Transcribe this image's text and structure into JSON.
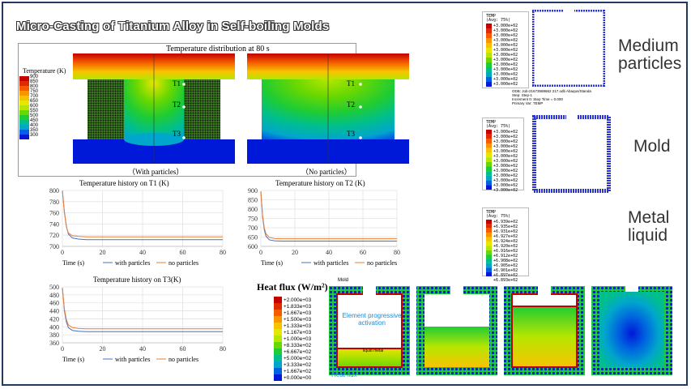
{
  "title": "Micro-Casting of Titanium Alloy in Self-boiling Molds",
  "temperature_panel": {
    "title": "Temperature distribution at 80 s",
    "legend_title": "Temperature (K)",
    "legend_values": [
      "900",
      "850",
      "800",
      "750",
      "700",
      "650",
      "600",
      "550",
      "500",
      "450",
      "400",
      "350",
      "300"
    ],
    "legend_colors": [
      "#c40000",
      "#e12a00",
      "#f55c00",
      "#fb9300",
      "#f7c300",
      "#e7e600",
      "#b6e600",
      "#6ad800",
      "#1fcc33",
      "#00bf8c",
      "#00a6cc",
      "#0062e0",
      "#0018d8"
    ],
    "probe_labels": [
      "T1",
      "T2",
      "T3"
    ],
    "left_caption": "（With particles）",
    "right_caption": "（No particles）"
  },
  "chart_data": [
    {
      "type": "line",
      "title": "Temperature history on T1 (K)",
      "xlabel": "Time (s)",
      "xlim": [
        0,
        80
      ],
      "ylim": [
        700,
        800
      ],
      "yticks": [
        700,
        720,
        740,
        760,
        780,
        800
      ],
      "xticks": [
        0,
        20,
        40,
        60,
        80
      ],
      "grid": true,
      "legend_position": "bottom",
      "series": [
        {
          "name": "with particles",
          "color": "#4472c4",
          "x": [
            0,
            1,
            2,
            3,
            5,
            8,
            12,
            20,
            40,
            60,
            80
          ],
          "y": [
            800,
            762,
            736,
            722,
            715,
            713,
            712,
            712,
            712,
            712,
            712
          ]
        },
        {
          "name": "no particles",
          "color": "#ed7d31",
          "x": [
            0,
            1,
            2,
            3,
            5,
            8,
            12,
            20,
            40,
            60,
            80
          ],
          "y": [
            800,
            760,
            735,
            724,
            719,
            718,
            717,
            717,
            717,
            717,
            717
          ]
        }
      ]
    },
    {
      "type": "line",
      "title": "Temperature history on T2 (K)",
      "xlabel": "Time (s)",
      "xlim": [
        0,
        80
      ],
      "ylim": [
        600,
        900
      ],
      "yticks": [
        600,
        650,
        700,
        750,
        800,
        850,
        900
      ],
      "xticks": [
        0,
        20,
        40,
        60,
        80
      ],
      "grid": true,
      "legend_position": "bottom",
      "series": [
        {
          "name": "with particles",
          "color": "#4472c4",
          "x": [
            0,
            1,
            2,
            3,
            5,
            8,
            12,
            20,
            40,
            60,
            80
          ],
          "y": [
            895,
            760,
            690,
            655,
            635,
            630,
            628,
            628,
            628,
            628,
            628
          ]
        },
        {
          "name": "no particles",
          "color": "#ed7d31",
          "x": [
            0,
            1,
            2,
            3,
            5,
            8,
            12,
            20,
            40,
            60,
            80
          ],
          "y": [
            895,
            770,
            700,
            668,
            648,
            642,
            641,
            641,
            641,
            641,
            641
          ]
        }
      ]
    },
    {
      "type": "line",
      "title": "Temperature history on T3(K)",
      "xlabel": "Time (s)",
      "xlim": [
        0,
        80
      ],
      "ylim": [
        360,
        500
      ],
      "yticks": [
        360,
        380,
        400,
        420,
        440,
        460,
        480,
        500
      ],
      "xticks": [
        0,
        20,
        40,
        60,
        80
      ],
      "grid": true,
      "legend_position": "bottom",
      "series": [
        {
          "name": "with particles",
          "color": "#4472c4",
          "x": [
            0,
            1,
            2,
            3,
            5,
            8,
            12,
            20,
            40,
            60,
            80
          ],
          "y": [
            498,
            440,
            412,
            398,
            391,
            389,
            388,
            388,
            388,
            388,
            388
          ]
        },
        {
          "name": "no particles",
          "color": "#ed7d31",
          "x": [
            0,
            1,
            2,
            3,
            5,
            8,
            12,
            20,
            40,
            60,
            80
          ],
          "y": [
            498,
            445,
            418,
            405,
            398,
            396,
            395,
            395,
            395,
            395,
            395
          ]
        }
      ]
    }
  ],
  "heat_flux": {
    "title": "Heat flux (W/m²)",
    "values": [
      "+2.000e+03",
      "+1.833e+03",
      "+1.667e+03",
      "+1.500e+03",
      "+1.333e+03",
      "+1.167e+03",
      "+1.000e+03",
      "+8.333e+02",
      "+6.667e+02",
      "+5.000e+02",
      "+3.333e+02",
      "+1.667e+02",
      "+0.000e+00"
    ],
    "colors": [
      "#c40000",
      "#e12a00",
      "#f55c00",
      "#fb9300",
      "#f7c300",
      "#e7e600",
      "#b6e600",
      "#6ad800",
      "#1fcc33",
      "#00bf8c",
      "#00a6cc",
      "#0062e0",
      "#0018d8"
    ],
    "mold_label": "Mold",
    "activation_label": "Element progressive activation",
    "liquid_label": "liquid metal",
    "flux_label": "Heat flux"
  },
  "abaqus_legends": {
    "temp_title": "TEMP",
    "avg": "(Avg: 75%)",
    "medium_values": [
      "+3.000e+02",
      "+3.000e+02",
      "+3.000e+02",
      "+3.000e+02",
      "+3.000e+02",
      "+3.000e+02",
      "+3.000e+02",
      "+3.000e+02",
      "+3.000e+02",
      "+3.000e+02",
      "+3.000e+02",
      "+3.000e+02",
      "+3.000e+02"
    ],
    "mold_values": [
      "+3.000e+02",
      "+3.000e+02",
      "+3.000e+02",
      "+3.000e+02",
      "+3.000e+02",
      "+3.000e+02",
      "+3.000e+02",
      "+3.000e+02",
      "+3.000e+02",
      "+3.000e+02",
      "+3.000e+02",
      "+3.000e+02",
      "+3.000e+02"
    ],
    "metal_values": [
      "+6.939e+02",
      "+6.935e+02",
      "+6.931e+02",
      "+6.927e+02",
      "+6.924e+02",
      "+6.920e+02",
      "+6.916e+02",
      "+6.912e+02",
      "+6.908e+02",
      "+6.905e+02",
      "+6.901e+02",
      "+6.897e+02",
      "+6.893e+02"
    ],
    "odb_line": "ODB: Job-21673588662 217.odb    Abaqus/Standa",
    "step_line": "Step: Step-1",
    "increment_line": "Increment     0: Step Time =    0.000",
    "primary_var": "Primary Var: TEMP"
  },
  "side_labels": {
    "medium": "Medium\nparticles",
    "mold": "Mold",
    "metal": "Metal\nliquid"
  }
}
